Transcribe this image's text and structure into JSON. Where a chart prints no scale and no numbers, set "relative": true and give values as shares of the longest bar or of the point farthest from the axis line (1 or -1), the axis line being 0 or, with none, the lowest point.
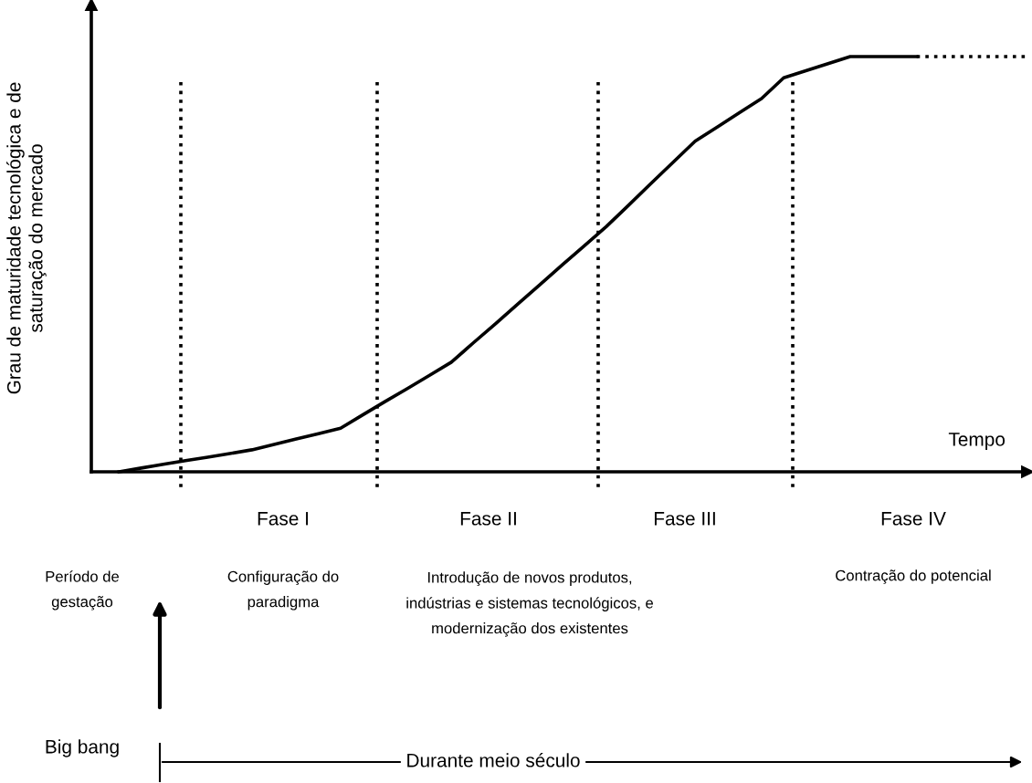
{
  "chart_data": {
    "type": "line",
    "relative": true,
    "xlabel": "Tempo",
    "ylabel": "Grau de maturidade tecnológica e de\nsaturação do mercado",
    "categories": [
      null,
      null,
      null,
      null,
      null,
      null,
      null,
      null,
      null,
      null,
      null,
      null,
      null,
      null,
      null,
      null,
      null,
      null,
      null,
      null,
      null,
      null,
      null,
      null,
      null,
      null,
      null,
      null,
      null,
      null,
      null,
      null,
      null,
      null,
      null,
      null,
      null,
      null,
      null,
      null,
      null,
      null
    ],
    "series": [
      {
        "color": "#000000",
        "line_style": "solid",
        "values": [
          0,
          0.009,
          0.018,
          0.027,
          0.035,
          0.044,
          0.053,
          0.066,
          0.079,
          0.092,
          0.105,
          0.137,
          0.169,
          0.2,
          0.232,
          0.264,
          0.311,
          0.357,
          0.404,
          0.451,
          0.498,
          0.544,
          0.591,
          0.642,
          0.694,
          0.745,
          0.796,
          0.83,
          0.865,
          0.899,
          0.949,
          0.966,
          0.983,
          1,
          1,
          1,
          1,
          null,
          null,
          null,
          null,
          null
        ]
      },
      {
        "color": "#000000",
        "line_style": "dotted",
        "values": [
          null,
          null,
          null,
          null,
          null,
          null,
          null,
          null,
          null,
          null,
          null,
          null,
          null,
          null,
          null,
          null,
          null,
          null,
          null,
          null,
          null,
          null,
          null,
          null,
          null,
          null,
          null,
          null,
          null,
          null,
          null,
          null,
          null,
          null,
          null,
          null,
          1,
          1,
          1,
          1,
          1,
          1
        ]
      }
    ],
    "annotations": [
      "Fase I",
      "Fase II",
      "Fase III",
      "Fase IV",
      "Período de\ngestação",
      "Configuração do\nparadigma",
      "Introdução de novos produtos,\nindústrias e sistemas tecnológicos, e\nmodernização dos existentes",
      "Contração do potencial",
      "Big bang",
      "Durante meio século"
    ]
  }
}
